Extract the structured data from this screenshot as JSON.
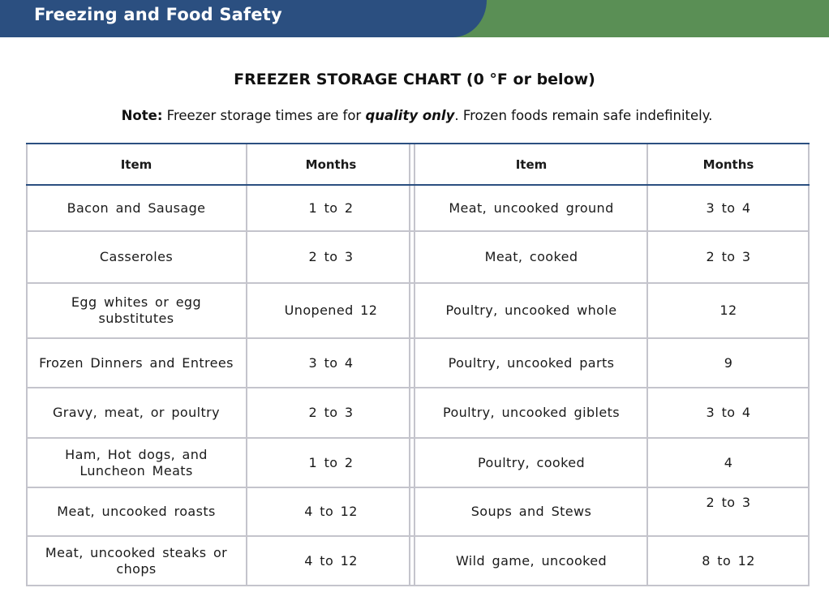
{
  "header": {
    "banner_title": "Freezing and Food Safety"
  },
  "chart": {
    "title": "FREEZER STORAGE CHART (0 °F or below)",
    "note_label": "Note:",
    "note_text_1": " Freezer storage times are for ",
    "note_emphasis": "quality only",
    "note_text_2": ". Frozen foods remain safe indefinitely."
  },
  "table": {
    "headers": [
      "Item",
      "Months",
      "Item",
      "Months"
    ],
    "rows": [
      [
        "Bacon and Sausage",
        "1 to 2",
        "Meat, uncooked ground",
        "3 to 4"
      ],
      [
        "Casseroles",
        "2 to 3",
        "Meat, cooked",
        "2 to 3"
      ],
      [
        "Egg whites or egg substitutes",
        "Unopened 12",
        "Poultry, uncooked whole",
        "12"
      ],
      [
        "Frozen Dinners and Entrees",
        "3 to 4",
        "Poultry, uncooked parts",
        "9"
      ],
      [
        "Gravy, meat, or poultry",
        "2 to 3",
        "Poultry, uncooked giblets",
        "3 to 4"
      ],
      [
        "Ham, Hot dogs, and Luncheon Meats",
        "1 to 2",
        "Poultry, cooked",
        "4"
      ],
      [
        "Meat, uncooked roasts",
        "4 to 12",
        "Soups and Stews",
        "2 to 3"
      ],
      [
        "Meat, uncooked steaks or chops",
        "4 to 12",
        "Wild game, uncooked",
        "8 to 12"
      ]
    ]
  },
  "colors": {
    "banner_blue": "#2b4f80",
    "banner_green": "#5a8f55",
    "grid": "#c4c4cc"
  }
}
